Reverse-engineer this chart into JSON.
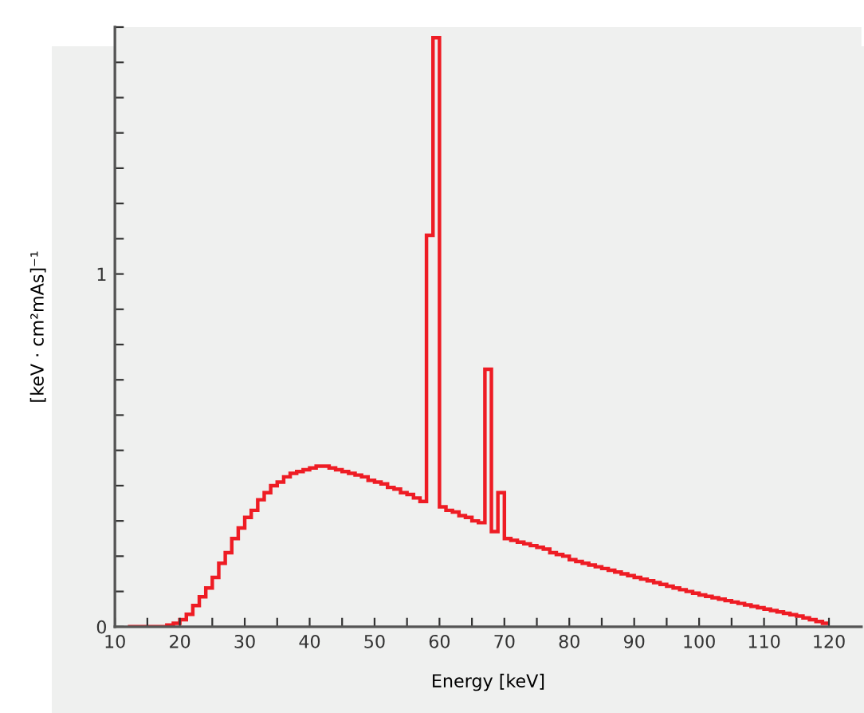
{
  "chart_data": {
    "type": "histogram",
    "xlabel": "Energy [keV]",
    "ylabel": "[keV · cm²mAs]⁻¹",
    "bins": [
      12,
      13,
      14,
      15,
      16,
      17,
      18,
      19,
      20,
      21,
      22,
      23,
      24,
      25,
      26,
      27,
      28,
      29,
      30,
      31,
      32,
      33,
      34,
      35,
      36,
      37,
      38,
      39,
      40,
      41,
      42,
      43,
      44,
      45,
      46,
      47,
      48,
      49,
      50,
      51,
      52,
      53,
      54,
      55,
      56,
      57,
      58,
      59,
      60,
      61,
      62,
      63,
      64,
      65,
      66,
      67,
      68,
      69,
      70,
      71,
      72,
      73,
      74,
      75,
      76,
      77,
      78,
      79,
      80,
      81,
      82,
      83,
      84,
      85,
      86,
      87,
      88,
      89,
      90,
      91,
      92,
      93,
      94,
      95,
      96,
      97,
      98,
      99,
      100,
      101,
      102,
      103,
      104,
      105,
      106,
      107,
      108,
      109,
      110,
      111,
      112,
      113,
      114,
      115,
      116,
      117,
      118,
      119,
      120
    ],
    "values": [
      0,
      0,
      0,
      0,
      0,
      0,
      0.005,
      0.01,
      0.02,
      0.035,
      0.06,
      0.085,
      0.11,
      0.14,
      0.18,
      0.21,
      0.25,
      0.28,
      0.31,
      0.33,
      0.36,
      0.38,
      0.4,
      0.41,
      0.425,
      0.435,
      0.44,
      0.445,
      0.45,
      0.455,
      0.455,
      0.45,
      0.445,
      0.44,
      0.435,
      0.43,
      0.425,
      0.415,
      0.41,
      0.405,
      0.395,
      0.39,
      0.38,
      0.375,
      0.365,
      0.355,
      1.11,
      1.67,
      0.34,
      0.33,
      0.325,
      0.315,
      0.31,
      0.3,
      0.295,
      0.73,
      0.27,
      0.38,
      0.25,
      0.245,
      0.24,
      0.235,
      0.23,
      0.225,
      0.22,
      0.21,
      0.205,
      0.2,
      0.19,
      0.185,
      0.18,
      0.175,
      0.17,
      0.165,
      0.16,
      0.155,
      0.15,
      0.145,
      0.14,
      0.135,
      0.13,
      0.125,
      0.12,
      0.115,
      0.11,
      0.105,
      0.1,
      0.095,
      0.09,
      0.086,
      0.082,
      0.078,
      0.074,
      0.07,
      0.066,
      0.062,
      0.058,
      0.054,
      0.05,
      0.046,
      0.042,
      0.038,
      0.034,
      0.03,
      0.025,
      0.02,
      0.015,
      0.01
    ],
    "color": "#ee1c24",
    "xlim": [
      10,
      125
    ],
    "ylim": [
      0,
      1.7
    ],
    "xticks": [
      10,
      {
        "value": 15,
        "label": null
      },
      20,
      {
        "value": 25,
        "label": null
      },
      30,
      {
        "value": 35,
        "label": null
      },
      40,
      {
        "value": 45,
        "label": null
      },
      50,
      {
        "value": 55,
        "label": null
      },
      60,
      {
        "value": 65,
        "label": null
      },
      70,
      {
        "value": 75,
        "label": null
      },
      80,
      {
        "value": 85,
        "label": null
      },
      90,
      {
        "value": 95,
        "label": null
      },
      100,
      {
        "value": 105,
        "label": null
      },
      110,
      {
        "value": 115,
        "label": null
      },
      120
    ],
    "yticks": [
      0,
      {
        "value": 0.1,
        "label": null
      },
      {
        "value": 0.2,
        "label": null
      },
      {
        "value": 0.3,
        "label": null
      },
      {
        "value": 0.4,
        "label": null
      },
      {
        "value": 0.5,
        "label": null
      },
      {
        "value": 0.6,
        "label": null
      },
      {
        "value": 0.7,
        "label": null
      },
      {
        "value": 0.8,
        "label": null
      },
      {
        "value": 0.9,
        "label": null
      },
      1,
      {
        "value": 1.1,
        "label": null
      },
      {
        "value": 1.2,
        "label": null
      },
      {
        "value": 1.3,
        "label": null
      },
      {
        "value": 1.4,
        "label": null
      },
      {
        "value": 1.5,
        "label": null
      },
      {
        "value": 1.6,
        "label": null
      },
      {
        "value": 1.7,
        "label": null
      }
    ],
    "grid": false,
    "legend": false
  }
}
